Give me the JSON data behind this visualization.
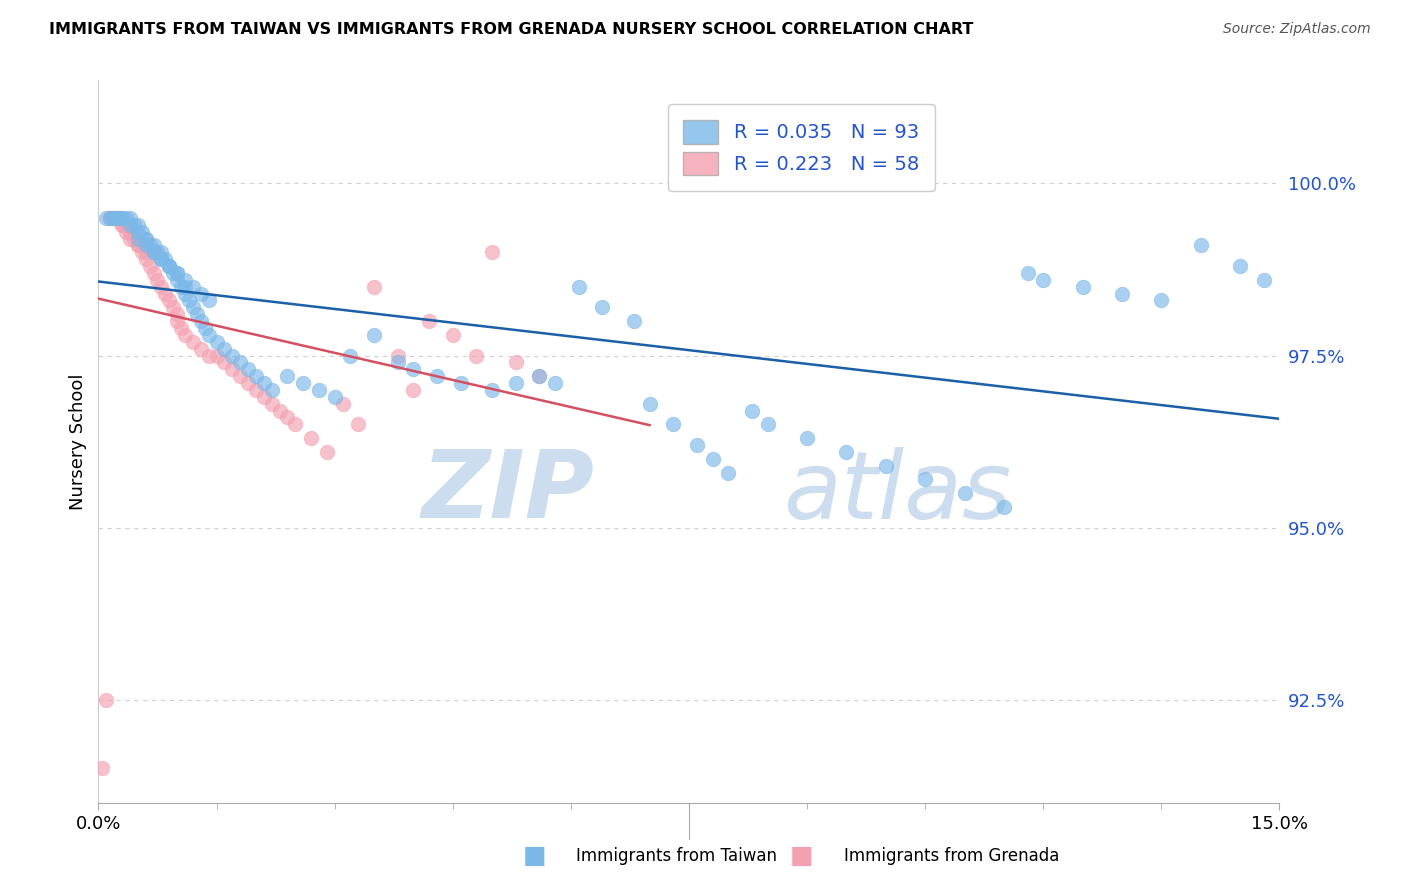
{
  "title": "IMMIGRANTS FROM TAIWAN VS IMMIGRANTS FROM GRENADA NURSERY SCHOOL CORRELATION CHART",
  "source": "Source: ZipAtlas.com",
  "ylabel": "Nursery School",
  "ytick_values": [
    92.5,
    95.0,
    97.5,
    100.0
  ],
  "xlim": [
    0.0,
    15.0
  ],
  "ylim": [
    91.0,
    101.5
  ],
  "taiwan_color": "#7bb8e8",
  "grenada_color": "#f4a0b0",
  "taiwan_line_color": "#1a5fa8",
  "grenada_line_color": "#d45060",
  "watermark_zip": "ZIP",
  "watermark_atlas": "atlas",
  "taiwan_x": [
    0.1,
    0.15,
    0.2,
    0.2,
    0.25,
    0.3,
    0.3,
    0.35,
    0.4,
    0.4,
    0.45,
    0.5,
    0.5,
    0.55,
    0.6,
    0.6,
    0.65,
    0.7,
    0.7,
    0.75,
    0.8,
    0.8,
    0.85,
    0.9,
    0.9,
    0.95,
    1.0,
    1.0,
    1.05,
    1.1,
    1.1,
    1.15,
    1.2,
    1.25,
    1.3,
    1.35,
    1.4,
    1.5,
    1.6,
    1.7,
    1.8,
    1.9,
    2.0,
    2.1,
    2.2,
    2.4,
    2.6,
    2.8,
    3.0,
    3.2,
    3.5,
    3.8,
    4.0,
    4.3,
    4.6,
    5.0,
    5.3,
    5.6,
    5.8,
    6.1,
    6.4,
    6.8,
    7.0,
    7.3,
    7.6,
    7.8,
    8.0,
    8.3,
    8.5,
    9.0,
    9.5,
    10.0,
    10.5,
    11.0,
    11.5,
    11.8,
    12.0,
    12.5,
    13.0,
    13.5,
    14.0,
    14.5,
    14.8,
    0.5,
    0.6,
    0.7,
    0.8,
    0.9,
    1.0,
    1.1,
    1.2,
    1.3,
    1.4
  ],
  "taiwan_y": [
    99.5,
    99.5,
    99.5,
    99.5,
    99.5,
    99.5,
    99.5,
    99.5,
    99.5,
    99.4,
    99.4,
    99.4,
    99.3,
    99.3,
    99.2,
    99.2,
    99.1,
    99.1,
    99.0,
    99.0,
    99.0,
    98.9,
    98.9,
    98.8,
    98.8,
    98.7,
    98.7,
    98.6,
    98.5,
    98.5,
    98.4,
    98.3,
    98.2,
    98.1,
    98.0,
    97.9,
    97.8,
    97.7,
    97.6,
    97.5,
    97.4,
    97.3,
    97.2,
    97.1,
    97.0,
    97.2,
    97.1,
    97.0,
    96.9,
    97.5,
    97.8,
    97.4,
    97.3,
    97.2,
    97.1,
    97.0,
    97.1,
    97.2,
    97.1,
    98.5,
    98.2,
    98.0,
    96.8,
    96.5,
    96.2,
    96.0,
    95.8,
    96.7,
    96.5,
    96.3,
    96.1,
    95.9,
    95.7,
    95.5,
    95.3,
    98.7,
    98.6,
    98.5,
    98.4,
    98.3,
    99.1,
    98.8,
    98.6,
    99.2,
    99.1,
    99.0,
    98.9,
    98.8,
    98.7,
    98.6,
    98.5,
    98.4,
    98.3
  ],
  "grenada_x": [
    0.05,
    0.1,
    0.15,
    0.15,
    0.2,
    0.2,
    0.25,
    0.25,
    0.3,
    0.3,
    0.35,
    0.35,
    0.4,
    0.4,
    0.45,
    0.5,
    0.5,
    0.55,
    0.6,
    0.6,
    0.65,
    0.7,
    0.75,
    0.8,
    0.85,
    0.9,
    0.95,
    1.0,
    1.0,
    1.05,
    1.1,
    1.2,
    1.3,
    1.4,
    1.5,
    1.6,
    1.7,
    1.8,
    1.9,
    2.0,
    2.1,
    2.2,
    2.3,
    2.4,
    2.5,
    2.7,
    2.9,
    3.1,
    3.3,
    3.5,
    3.8,
    4.0,
    4.2,
    4.5,
    4.8,
    5.0,
    5.3,
    5.6
  ],
  "grenada_y": [
    91.5,
    92.5,
    99.5,
    99.5,
    99.5,
    99.5,
    99.5,
    99.5,
    99.4,
    99.4,
    99.4,
    99.3,
    99.3,
    99.2,
    99.2,
    99.1,
    99.1,
    99.0,
    99.0,
    98.9,
    98.8,
    98.7,
    98.6,
    98.5,
    98.4,
    98.3,
    98.2,
    98.1,
    98.0,
    97.9,
    97.8,
    97.7,
    97.6,
    97.5,
    97.5,
    97.4,
    97.3,
    97.2,
    97.1,
    97.0,
    96.9,
    96.8,
    96.7,
    96.6,
    96.5,
    96.3,
    96.1,
    96.8,
    96.5,
    98.5,
    97.5,
    97.0,
    98.0,
    97.8,
    97.5,
    99.0,
    97.4,
    97.2
  ]
}
